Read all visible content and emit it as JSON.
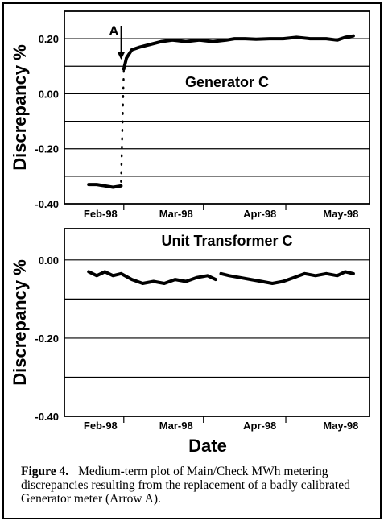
{
  "figure": {
    "x_axis_title": "Date",
    "caption_label": "Figure 4.",
    "caption_text": "Medium-term plot of Main/Check MWh metering discrepancies resulting from the replacement of a badly calibrated Generator meter (Arrow A)."
  },
  "chart_data": [
    {
      "type": "line",
      "title": "Generator C",
      "xlabel": "",
      "ylabel": "Discrepancy %",
      "x_ticks": [
        "Feb-98",
        "Mar-98",
        "Apr-98",
        "May-98"
      ],
      "xlim": [
        "1998-01-24",
        "1998-05-17"
      ],
      "ylim": [
        -0.4,
        0.3
      ],
      "y_ticks": [
        0.2,
        0.0,
        -0.2,
        -0.4
      ],
      "y_tick_labels": [
        "0.20",
        "0.00",
        "-0.20",
        "-0.40"
      ],
      "grid": "horizontal",
      "annotations": [
        {
          "label": "A",
          "note": "arrow pointing down at meter replacement",
          "x": "1998-02-14"
        }
      ],
      "series": [
        {
          "style": "solid",
          "points": [
            [
              "1998-02-02",
              -0.33
            ],
            [
              "1998-02-05",
              -0.33
            ],
            [
              "1998-02-08",
              -0.335
            ],
            [
              "1998-02-11",
              -0.34
            ],
            [
              "1998-02-14",
              -0.335
            ]
          ]
        },
        {
          "style": "dotted",
          "points": [
            [
              "1998-02-14",
              -0.32
            ],
            [
              "1998-02-15",
              0.09
            ]
          ]
        },
        {
          "style": "solid",
          "points": [
            [
              "1998-02-15",
              0.09
            ],
            [
              "1998-02-16",
              0.13
            ],
            [
              "1998-02-18",
              0.16
            ],
            [
              "1998-02-21",
              0.17
            ],
            [
              "1998-02-25",
              0.18
            ],
            [
              "1998-03-01",
              0.19
            ],
            [
              "1998-03-05",
              0.195
            ],
            [
              "1998-03-10",
              0.19
            ],
            [
              "1998-03-15",
              0.195
            ],
            [
              "1998-03-20",
              0.19
            ],
            [
              "1998-03-25",
              0.195
            ],
            [
              "1998-03-28",
              0.2
            ],
            [
              "1998-04-01",
              0.2
            ],
            [
              "1998-04-05",
              0.198
            ],
            [
              "1998-04-10",
              0.2
            ],
            [
              "1998-04-15",
              0.2
            ],
            [
              "1998-04-20",
              0.205
            ],
            [
              "1998-04-25",
              0.2
            ],
            [
              "1998-05-01",
              0.2
            ],
            [
              "1998-05-05",
              0.195
            ],
            [
              "1998-05-08",
              0.205
            ],
            [
              "1998-05-11",
              0.21
            ]
          ]
        }
      ]
    },
    {
      "type": "line",
      "title": "Unit Transformer C",
      "xlabel": "Date",
      "ylabel": "Discrepancy %",
      "x_ticks": [
        "Feb-98",
        "Mar-98",
        "Apr-98",
        "May-98"
      ],
      "xlim": [
        "1998-01-24",
        "1998-05-17"
      ],
      "ylim": [
        -0.4,
        0.08
      ],
      "y_ticks": [
        0.0,
        -0.2,
        -0.4
      ],
      "y_tick_labels": [
        "0.00",
        "-0.20",
        "-0.40"
      ],
      "grid": "horizontal",
      "series": [
        {
          "style": "solid",
          "points": [
            [
              "1998-02-02",
              -0.03
            ],
            [
              "1998-02-05",
              -0.04
            ],
            [
              "1998-02-08",
              -0.03
            ],
            [
              "1998-02-11",
              -0.04
            ],
            [
              "1998-02-14",
              -0.035
            ],
            [
              "1998-02-18",
              -0.05
            ],
            [
              "1998-02-22",
              -0.06
            ],
            [
              "1998-02-26",
              -0.055
            ],
            [
              "1998-03-02",
              -0.06
            ],
            [
              "1998-03-06",
              -0.05
            ],
            [
              "1998-03-10",
              -0.055
            ],
            [
              "1998-03-14",
              -0.045
            ],
            [
              "1998-03-18",
              -0.04
            ],
            [
              "1998-03-21",
              -0.05
            ]
          ]
        },
        {
          "style": "solid",
          "points": [
            [
              "1998-03-23",
              -0.035
            ],
            [
              "1998-03-26",
              -0.04
            ],
            [
              "1998-03-30",
              -0.045
            ],
            [
              "1998-04-03",
              -0.05
            ],
            [
              "1998-04-07",
              -0.055
            ],
            [
              "1998-04-11",
              -0.06
            ],
            [
              "1998-04-15",
              -0.055
            ],
            [
              "1998-04-19",
              -0.045
            ],
            [
              "1998-04-23",
              -0.035
            ],
            [
              "1998-04-27",
              -0.04
            ],
            [
              "1998-05-01",
              -0.035
            ],
            [
              "1998-05-05",
              -0.04
            ],
            [
              "1998-05-08",
              -0.03
            ],
            [
              "1998-05-11",
              -0.035
            ]
          ]
        }
      ]
    }
  ]
}
